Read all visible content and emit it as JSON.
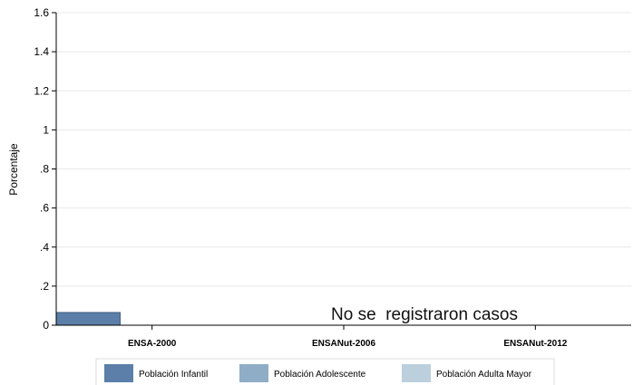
{
  "chart_data": {
    "type": "bar",
    "ylabel": "Porcentaje",
    "xlabel": "",
    "ylim": [
      0,
      1.6
    ],
    "yticks": [
      {
        "value": 0,
        "label": "0"
      },
      {
        "value": 0.2,
        "label": ".2"
      },
      {
        "value": 0.4,
        "label": ".4"
      },
      {
        "value": 0.6,
        "label": ".6"
      },
      {
        "value": 0.8,
        "label": ".8"
      },
      {
        "value": 1,
        "label": "1"
      },
      {
        "value": 1.2,
        "label": "1.2"
      },
      {
        "value": 1.4,
        "label": "1.4"
      },
      {
        "value": 1.6,
        "label": "1.6"
      }
    ],
    "categories": [
      "ENSA-2000",
      "ENSANut-2006",
      "ENSANut-2012"
    ],
    "series": [
      {
        "name": "Población Infantil",
        "color": "#5b7fa8",
        "values": [
          0.065,
          0,
          0
        ]
      },
      {
        "name": "Población Adolescente",
        "color": "#8fadc6",
        "values": [
          0,
          0,
          0
        ]
      },
      {
        "name": "Población Adulta Mayor",
        "color": "#bccfdd",
        "values": [
          0,
          0,
          0
        ]
      }
    ],
    "annotation": "No se  registraron casos",
    "grid": true,
    "legend_position": "bottom"
  }
}
